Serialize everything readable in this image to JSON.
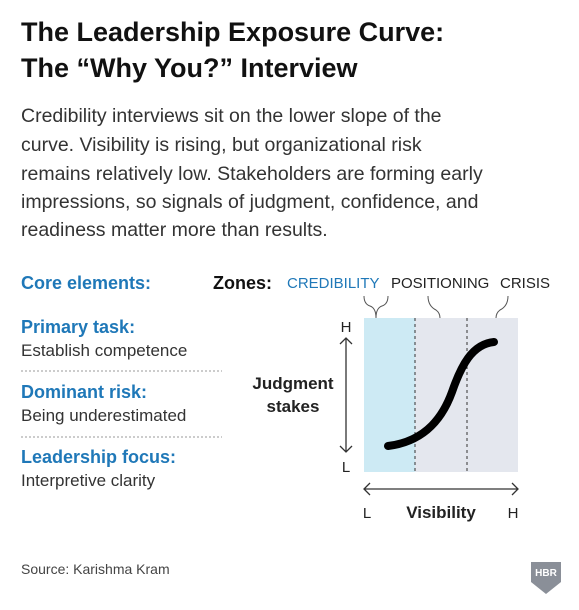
{
  "header": {
    "title": [
      "The Leadership Exposure Curve:",
      "The “Why You?” Interview"
    ]
  },
  "intro": [
    "Credibility interviews sit on the lower slope of the",
    "curve. Visibility is rising, but organizational risk",
    "remains relatively low. Stakeholders are forming early",
    "impressions, so signals of judgment, confidence, and",
    "readiness matter more than results."
  ],
  "core": {
    "heading": "Core elements:",
    "items": [
      {
        "label": "Primary task:",
        "text": "Establish competence"
      },
      {
        "label": "Dominant risk:",
        "text": "Being underestimated"
      },
      {
        "label": "Leadership focus:",
        "text": "Interpretive clarity"
      }
    ]
  },
  "zones": {
    "heading": "Zones:",
    "labels": [
      "CREDIBILITY",
      "POSITIONING",
      "CRISIS"
    ]
  },
  "diagram": {
    "y_axis": {
      "label": [
        "Judgment",
        "stakes"
      ],
      "high": "H",
      "low": "L"
    },
    "x_axis": {
      "label": "Visibility",
      "low": "L",
      "high": "H"
    }
  },
  "footer": {
    "source": "Source: Karishma Kram",
    "logo": "HBR"
  }
}
